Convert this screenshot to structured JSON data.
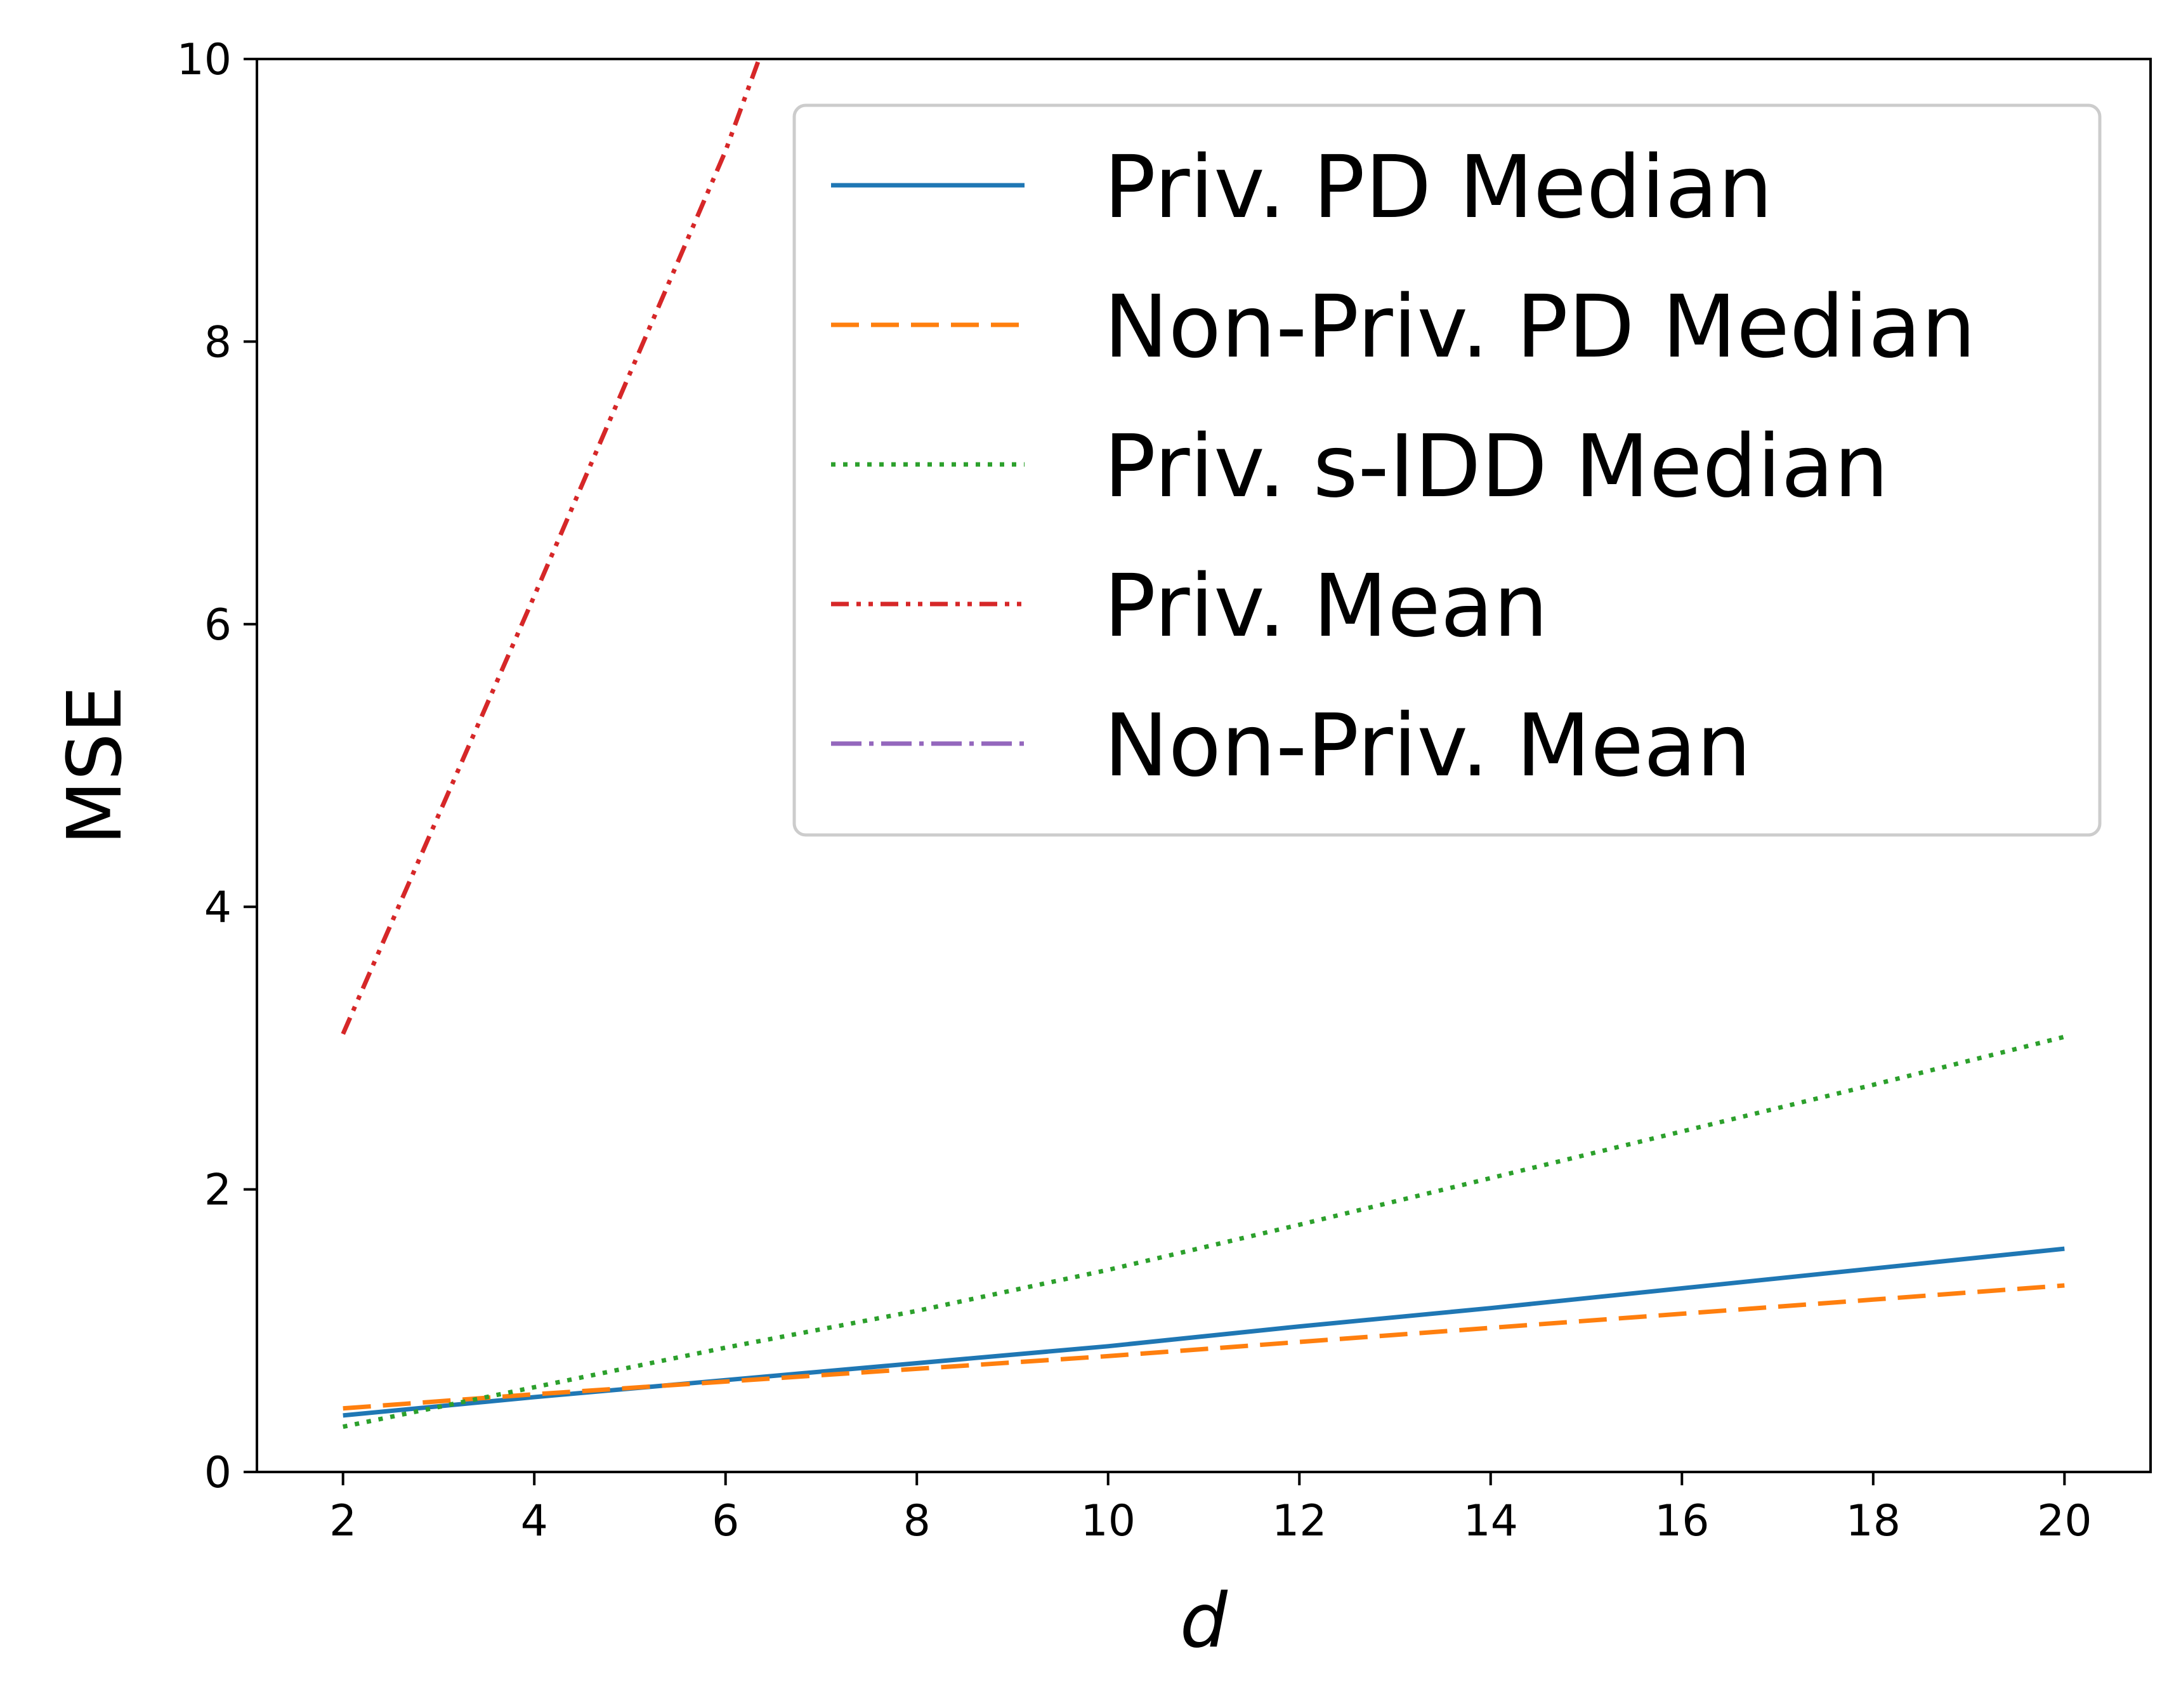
{
  "chart_data": {
    "type": "line",
    "title": "",
    "xlabel": "d",
    "ylabel": "MSE",
    "xlim": [
      1.1,
      20.9
    ],
    "ylim": [
      0,
      10
    ],
    "xticks": [
      2,
      4,
      6,
      8,
      10,
      12,
      14,
      16,
      18,
      20
    ],
    "yticks": [
      0,
      2,
      4,
      6,
      8,
      10
    ],
    "grid": false,
    "legend_position": "top-right",
    "series": [
      {
        "name": "Priv. PD Median",
        "color": "#1f77b4",
        "line_style": "solid",
        "x": [
          2,
          4,
          6,
          8,
          10,
          12,
          14,
          16,
          18,
          20
        ],
        "y": [
          0.4,
          0.53,
          0.65,
          0.77,
          0.89,
          1.03,
          1.16,
          1.3,
          1.44,
          1.58
        ]
      },
      {
        "name": "Non-Priv. PD Median",
        "color": "#ff7f0e",
        "line_style": "dashed",
        "x": [
          2,
          4,
          6,
          8,
          10,
          12,
          14,
          16,
          18,
          20
        ],
        "y": [
          0.45,
          0.55,
          0.64,
          0.73,
          0.82,
          0.92,
          1.02,
          1.12,
          1.22,
          1.32
        ]
      },
      {
        "name": "Priv. s-IDD Median",
        "color": "#2ca02c",
        "line_style": "dotted",
        "x": [
          2,
          4,
          6,
          8,
          10,
          12,
          14,
          16,
          18,
          20
        ],
        "y": [
          0.32,
          0.6,
          0.88,
          1.14,
          1.43,
          1.75,
          2.08,
          2.41,
          2.74,
          3.08
        ]
      },
      {
        "name": "Priv. Mean",
        "color": "#d62728",
        "line_style": "dashdotdot",
        "x": [
          2,
          4,
          6,
          6.35
        ],
        "y": [
          3.1,
          6.2,
          9.35,
          10
        ]
      },
      {
        "name": "Non-Priv. Mean",
        "color": "#9467bd",
        "line_style": "dashdot",
        "x": [],
        "y": []
      }
    ]
  }
}
